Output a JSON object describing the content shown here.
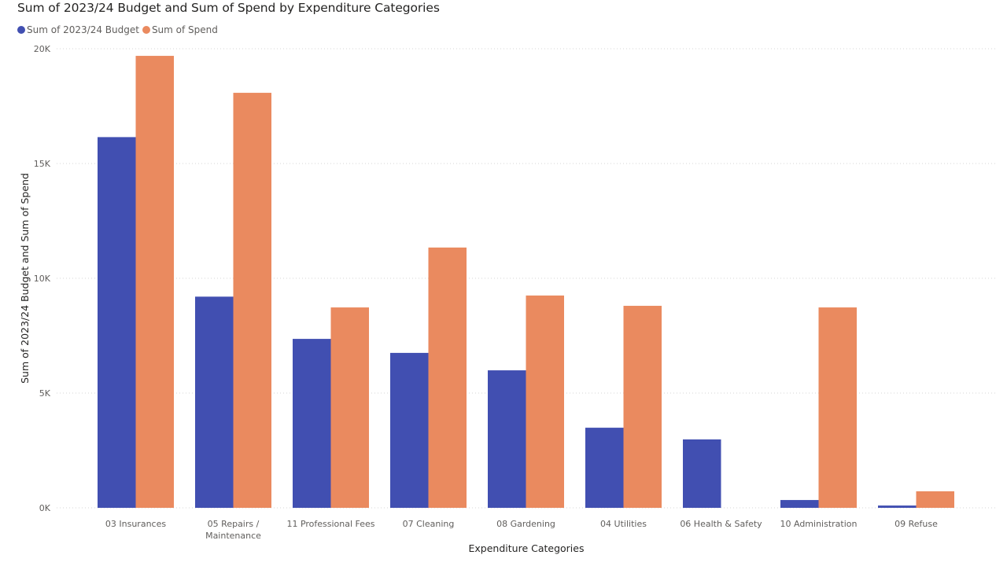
{
  "chart_data": {
    "type": "bar",
    "title": "Sum of 2023/24 Budget and Sum of Spend by Expenditure Categories",
    "xlabel": "Expenditure Categories",
    "ylabel": "Sum of 2023/24 Budget and Sum of Spend",
    "ylim": [
      0,
      20000
    ],
    "yticks": [
      {
        "value": 0,
        "label": "0K"
      },
      {
        "value": 5000,
        "label": "5K"
      },
      {
        "value": 10000,
        "label": "10K"
      },
      {
        "value": 15000,
        "label": "15K"
      },
      {
        "value": 20000,
        "label": "20K"
      }
    ],
    "grid": true,
    "legend_position": "top-left",
    "categories": [
      [
        "03 Insurances"
      ],
      [
        "05 Repairs /",
        "Maintenance"
      ],
      [
        "11 Professional Fees"
      ],
      [
        "07 Cleaning"
      ],
      [
        "08 Gardening"
      ],
      [
        "04 Utilities"
      ],
      [
        "06 Health & Safety"
      ],
      [
        "10 Administration"
      ],
      [
        "09 Refuse"
      ]
    ],
    "series": [
      {
        "name": "Sum of 2023/24 Budget",
        "color": "#414fb1",
        "values": [
          16150,
          9200,
          7360,
          6750,
          5990,
          3490,
          2980,
          340,
          100
        ]
      },
      {
        "name": "Sum of Spend",
        "color": "#ea8a5f",
        "values": [
          19690,
          18080,
          8730,
          11340,
          9250,
          8800,
          0,
          8730,
          720
        ]
      }
    ]
  }
}
